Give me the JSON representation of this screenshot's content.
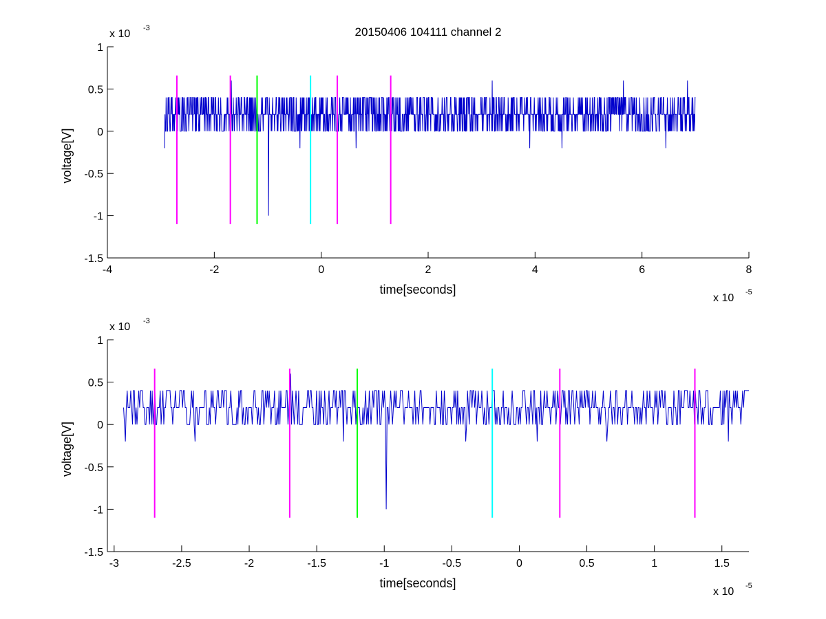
{
  "chart_data": [
    {
      "type": "line",
      "title": "20150406 104111 channel 2",
      "xlabel": "time[seconds]",
      "ylabel": "voltage[V]",
      "x_multiplier_label": "x 10",
      "x_multiplier_exp": "-5",
      "y_multiplier_label": "x 10",
      "y_multiplier_exp": "-3",
      "xlim": [
        -4,
        8
      ],
      "ylim": [
        -1.5,
        1
      ],
      "xticks": [
        -4,
        -2,
        0,
        2,
        4,
        6,
        8
      ],
      "xtick_labels": [
        "-4",
        "-2",
        "0",
        "2",
        "4",
        "6",
        "8"
      ],
      "yticks": [
        -1.5,
        -1,
        -0.5,
        0,
        0.5,
        1
      ],
      "ytick_labels": [
        "-1.5",
        "-1",
        "-0.5",
        "0",
        "0.5",
        "1"
      ],
      "grid": false,
      "signal": {
        "color": "#0000cc",
        "x_start": -2.93,
        "x_end": 7.0,
        "baseline_levels": [
          0,
          0.2,
          0.4
        ],
        "spikes": [
          {
            "x": -0.985,
            "y": -1.0
          },
          {
            "x": -1.68,
            "y": 0.6
          },
          {
            "x": 3.2,
            "y": 0.6
          },
          {
            "x": 5.65,
            "y": 0.6
          },
          {
            "x": 6.85,
            "y": 0.6
          },
          {
            "x": 4.5,
            "y": -0.2
          },
          {
            "x": 6.45,
            "y": -0.2
          },
          {
            "x": 3.9,
            "y": -0.2
          },
          {
            "x": -2.93,
            "y": -0.2
          },
          {
            "x": -0.4,
            "y": -0.2
          },
          {
            "x": 0.65,
            "y": -0.2
          }
        ]
      },
      "markers": [
        {
          "x": -2.7,
          "color": "#ff00ff"
        },
        {
          "x": -1.7,
          "color": "#ff00ff"
        },
        {
          "x": -1.2,
          "color": "#00ff00"
        },
        {
          "x": -0.2,
          "color": "#00ffff"
        },
        {
          "x": 0.3,
          "color": "#ff00ff"
        },
        {
          "x": 1.3,
          "color": "#ff00ff"
        }
      ],
      "marker_range": [
        -1.1,
        0.66
      ]
    },
    {
      "type": "line",
      "title": "",
      "xlabel": "time[seconds]",
      "ylabel": "voltage[V]",
      "x_multiplier_label": "x 10",
      "x_multiplier_exp": "-5",
      "y_multiplier_label": "x 10",
      "y_multiplier_exp": "-3",
      "xlim": [
        -3.05,
        1.7
      ],
      "ylim": [
        -1.5,
        1
      ],
      "xticks": [
        -3,
        -2.5,
        -2,
        -1.5,
        -1,
        -0.5,
        0,
        0.5,
        1,
        1.5
      ],
      "xtick_labels": [
        "-3",
        "-2.5",
        "-2",
        "-1.5",
        "-1",
        "-0.5",
        "0",
        "0.5",
        "1",
        "1.5"
      ],
      "yticks": [
        -1.5,
        -1,
        -0.5,
        0,
        0.5,
        1
      ],
      "ytick_labels": [
        "-1.5",
        "-1",
        "-0.5",
        "0",
        "0.5",
        "1"
      ],
      "grid": false,
      "signal": {
        "color": "#0000cc",
        "x_start": -2.93,
        "x_end": 1.7,
        "baseline_levels": [
          0,
          0.2,
          0.4
        ],
        "spikes": [
          {
            "x": -0.985,
            "y": -1.0
          },
          {
            "x": -1.69,
            "y": 0.6
          },
          {
            "x": -2.92,
            "y": -0.2
          },
          {
            "x": -2.4,
            "y": -0.2
          },
          {
            "x": -1.3,
            "y": -0.2
          },
          {
            "x": -0.4,
            "y": -0.2
          },
          {
            "x": 0.13,
            "y": -0.2
          },
          {
            "x": 0.65,
            "y": -0.2
          },
          {
            "x": 1.55,
            "y": -0.2
          }
        ]
      },
      "markers": [
        {
          "x": -2.7,
          "color": "#ff00ff"
        },
        {
          "x": -1.7,
          "color": "#ff00ff"
        },
        {
          "x": -1.2,
          "color": "#00ff00"
        },
        {
          "x": -0.2,
          "color": "#00ffff"
        },
        {
          "x": 0.3,
          "color": "#ff00ff"
        },
        {
          "x": 1.3,
          "color": "#ff00ff"
        }
      ],
      "marker_range": [
        -1.1,
        0.66
      ]
    }
  ]
}
